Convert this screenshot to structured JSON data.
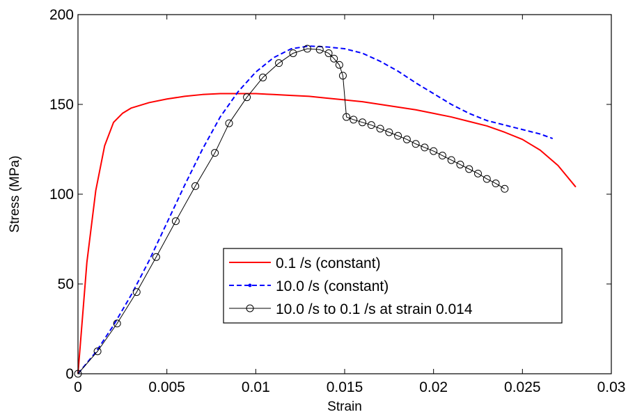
{
  "chart_data": {
    "type": "line",
    "title": "",
    "xlabel": "Strain",
    "ylabel": "Stress (MPa)",
    "xlim": [
      0,
      0.03
    ],
    "ylim": [
      0,
      200
    ],
    "xticks": [
      0,
      0.005,
      0.01,
      0.015,
      0.02,
      0.025,
      0.03
    ],
    "xtick_labels": [
      "0",
      "0.005",
      "0.01",
      "0.015",
      "0.02",
      "0.025",
      "0.03"
    ],
    "yticks": [
      0,
      50,
      100,
      150,
      200
    ],
    "ytick_labels": [
      "0",
      "50",
      "100",
      "150",
      "200"
    ],
    "grid": false,
    "legend_position": "lower-right",
    "series": [
      {
        "name": "0.1 /s (constant)",
        "color": "#ff0000",
        "style": "solid",
        "marker": "none",
        "x": [
          0,
          0.0005,
          0.001,
          0.0015,
          0.002,
          0.0025,
          0.003,
          0.004,
          0.005,
          0.006,
          0.007,
          0.008,
          0.009,
          0.01,
          0.011,
          0.012,
          0.013,
          0.014,
          0.015,
          0.016,
          0.017,
          0.018,
          0.019,
          0.02,
          0.021,
          0.022,
          0.023,
          0.024,
          0.025,
          0.026,
          0.027,
          0.028
        ],
        "y": [
          0,
          62,
          102,
          127,
          140,
          145,
          148,
          151,
          153,
          154.5,
          155.5,
          156,
          156,
          156,
          155.5,
          155,
          154.5,
          153.5,
          152.5,
          151.5,
          150,
          148.5,
          147,
          145,
          143,
          140.5,
          138,
          134.5,
          130.5,
          124.5,
          116,
          104
        ]
      },
      {
        "name": "10.0 /s (constant)",
        "color": "#0000ff",
        "style": "dashed",
        "marker": "dot",
        "x": [
          0,
          0.001,
          0.002,
          0.003,
          0.004,
          0.005,
          0.006,
          0.007,
          0.008,
          0.009,
          0.01,
          0.011,
          0.012,
          0.013,
          0.014,
          0.015,
          0.016,
          0.017,
          0.018,
          0.019,
          0.02,
          0.021,
          0.022,
          0.023,
          0.024,
          0.025,
          0.026,
          0.0267
        ],
        "y": [
          0,
          12,
          27,
          44,
          63,
          84,
          105,
          125,
          143,
          157,
          168,
          176,
          181,
          182.5,
          182,
          181,
          178.5,
          174,
          168.5,
          162,
          156,
          150,
          145,
          141,
          138.5,
          136,
          133.5,
          131
        ]
      },
      {
        "name": "10.0 /s to 0.1 /s at strain 0.014",
        "color": "#000000",
        "style": "solid",
        "marker": "circle",
        "x": [
          0,
          0.0011,
          0.0022,
          0.0033,
          0.0044,
          0.0055,
          0.0066,
          0.0077,
          0.0085,
          0.0095,
          0.0104,
          0.0113,
          0.0121,
          0.0129,
          0.0136,
          0.0141,
          0.0144,
          0.0147,
          0.0149,
          0.0151,
          0.0155,
          0.016,
          0.0165,
          0.017,
          0.0175,
          0.018,
          0.0185,
          0.019,
          0.0195,
          0.02,
          0.0205,
          0.021,
          0.0215,
          0.022,
          0.0225,
          0.023,
          0.0235,
          0.024
        ],
        "y": [
          0,
          12.5,
          28,
          45.5,
          65,
          85,
          104.5,
          123,
          139.5,
          154,
          165,
          173,
          178.5,
          181,
          180.5,
          178.5,
          175.5,
          172,
          166,
          143,
          141.5,
          140,
          138.5,
          136.5,
          134.5,
          132.5,
          130.5,
          128,
          126,
          124,
          121.5,
          119,
          116.5,
          114,
          111.5,
          108.5,
          106,
          103
        ]
      }
    ]
  }
}
